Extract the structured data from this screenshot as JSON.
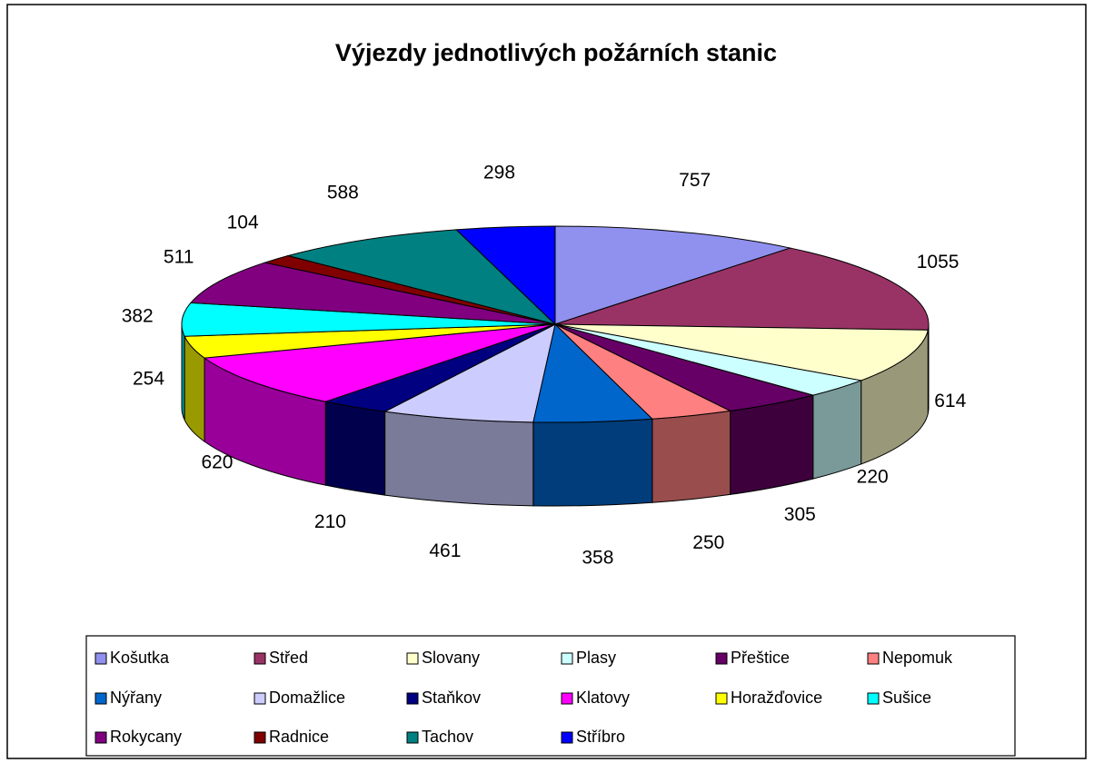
{
  "chart_data": {
    "type": "pie",
    "title": "Výjezdy jednotlivých požárních stanic",
    "categories": [
      "Košutka",
      "Střed",
      "Slovany",
      "Plasy",
      "Přeštice",
      "Nepomuk",
      "Nýřany",
      "Domažlice",
      "Staňkov",
      "Klatovy",
      "Horažďovice",
      "Sušice",
      "Rokycany",
      "Radnice",
      "Tachov",
      "Stříbro"
    ],
    "values": [
      757,
      1055,
      614,
      220,
      305,
      250,
      358,
      461,
      210,
      620,
      254,
      382,
      511,
      104,
      588,
      298
    ],
    "colors": [
      "#9090ee",
      "#993366",
      "#ffffcc",
      "#ccffff",
      "#660066",
      "#ff8080",
      "#0066cc",
      "#ccccff",
      "#000080",
      "#ff00ff",
      "#ffff00",
      "#00ffff",
      "#800080",
      "#800000",
      "#008080",
      "#0000ff"
    ],
    "legend": "bottom"
  }
}
